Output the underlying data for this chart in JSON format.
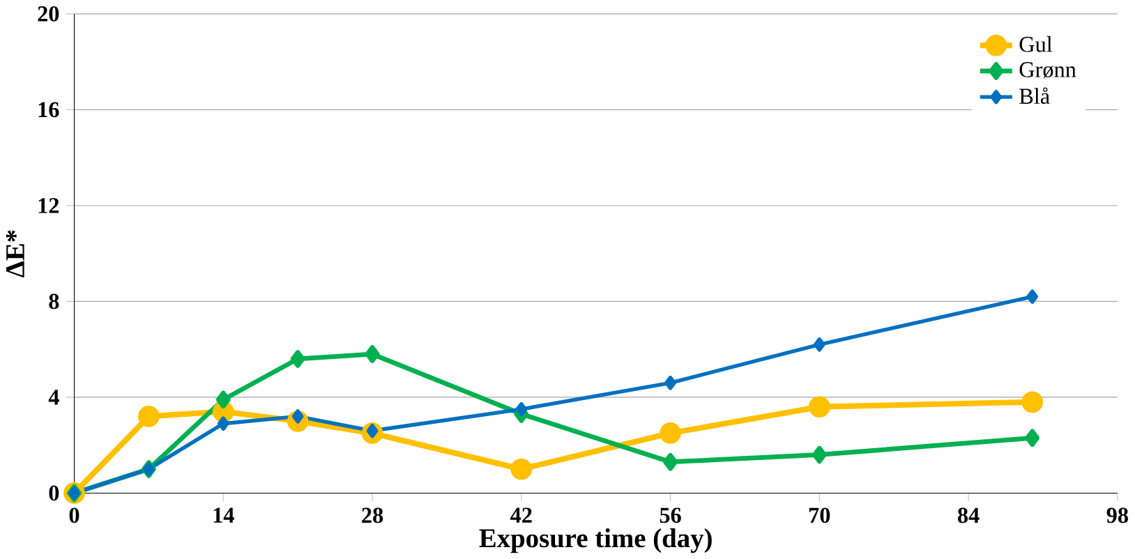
{
  "chart_data": {
    "type": "line",
    "xlabel": "Exposure time (day)",
    "ylabel": "ΔE*",
    "x": [
      0,
      7,
      14,
      21,
      28,
      42,
      56,
      70,
      90
    ],
    "series": [
      {
        "name": "Gul",
        "color": "#ffc000",
        "marker": "circle",
        "values": [
          0,
          3.2,
          3.4,
          3.0,
          2.5,
          1.0,
          2.5,
          3.6,
          3.8
        ]
      },
      {
        "name": "Grønn",
        "color": "#00b050",
        "marker": "diamond",
        "values": [
          0,
          1.0,
          3.9,
          5.6,
          5.8,
          3.3,
          1.3,
          1.6,
          2.3
        ]
      },
      {
        "name": "Blå",
        "color": "#0070c0",
        "marker": "diamond",
        "values": [
          0,
          1.0,
          2.9,
          3.2,
          2.6,
          3.5,
          4.6,
          6.2,
          8.2
        ]
      }
    ],
    "xlim": [
      0,
      98
    ],
    "xticks": [
      0,
      14,
      28,
      42,
      56,
      70,
      84,
      98
    ],
    "ylim": [
      0,
      20
    ],
    "yticks": [
      0,
      4,
      8,
      12,
      16,
      20
    ],
    "grid": "y",
    "legend": "top right",
    "line_style": "solid"
  }
}
